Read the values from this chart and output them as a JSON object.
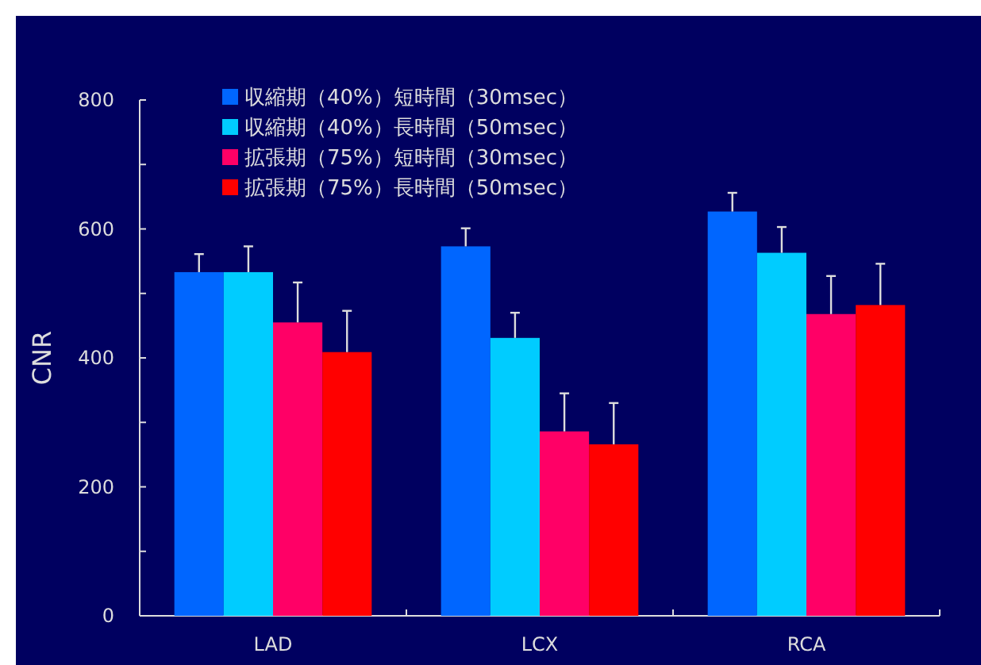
{
  "chart_data": {
    "type": "bar",
    "ylabel": "CNR",
    "categories": [
      "LAD",
      "LCX",
      "RCA"
    ],
    "series": [
      {
        "name": "収縮期（40%）短時間（30msec）",
        "color": "#0066ff",
        "values": [
          533,
          573,
          627
        ],
        "errors": [
          [
            533,
            561
          ],
          [
            573,
            601
          ],
          [
            627,
            656
          ]
        ]
      },
      {
        "name": "収縮期（40%）長時間（50msec）",
        "color": "#00ccff",
        "values": [
          533,
          431,
          563
        ],
        "errors": [
          [
            533,
            573
          ],
          [
            431,
            470
          ],
          [
            563,
            603
          ]
        ]
      },
      {
        "name": "拡張期（75%）短時間（30msec）",
        "color": "#ff0066",
        "values": [
          455,
          286,
          468
        ],
        "errors": [
          [
            455,
            517
          ],
          [
            286,
            345
          ],
          [
            468,
            527
          ]
        ]
      },
      {
        "name": "拡張期（75%）長時間（50msec）",
        "color": "#ff0000",
        "values": [
          409,
          266,
          482
        ],
        "errors": [
          [
            409,
            473
          ],
          [
            266,
            330
          ],
          [
            482,
            546
          ]
        ]
      }
    ],
    "ylim": [
      0,
      800
    ],
    "yticks": [
      0,
      {
        "value": 100,
        "label": null
      },
      200,
      {
        "value": 300,
        "label": null
      },
      400,
      {
        "value": 500,
        "label": null
      },
      600,
      {
        "value": 700,
        "label": null
      },
      800
    ],
    "grid": false,
    "legend": "top left"
  }
}
